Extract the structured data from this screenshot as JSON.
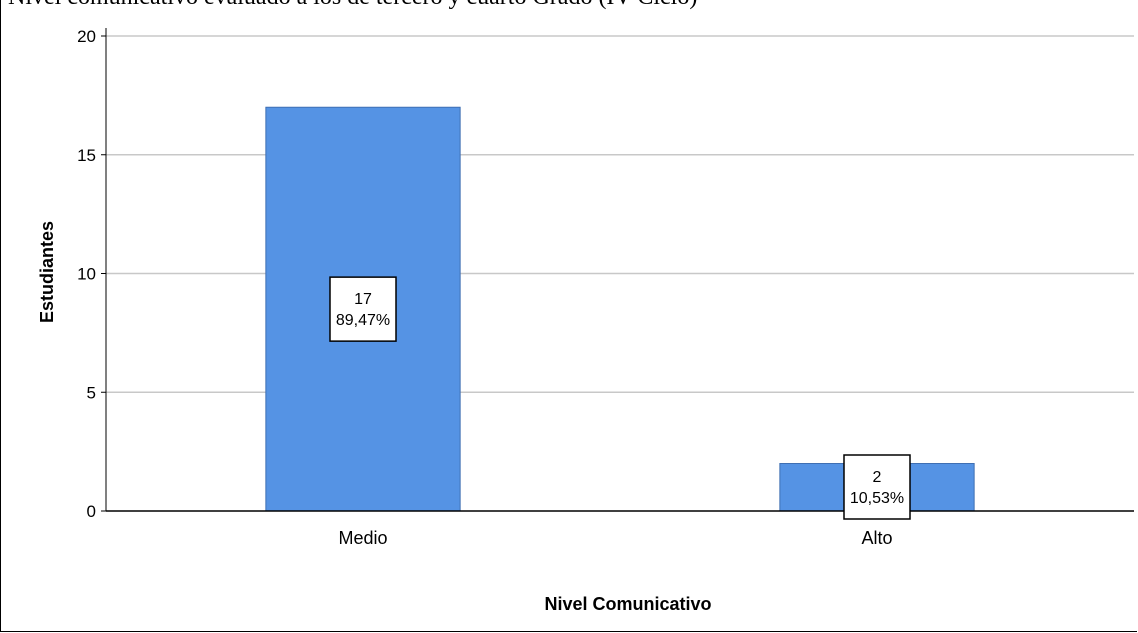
{
  "caption": "Nivel comunicativo evaluado a los de tercero y cuarto Grado (IV Ciclo)",
  "chart_data": {
    "type": "bar",
    "categories": [
      "Medio",
      "Alto"
    ],
    "values": [
      17,
      2
    ],
    "percent_labels": [
      "89,47%",
      "10,53%"
    ],
    "xlabel": "Nivel Comunicativo",
    "ylabel": "Estudiantes",
    "ylim": [
      0,
      20
    ],
    "yticks": [
      0,
      5,
      10,
      15,
      20
    ],
    "grid": true,
    "bar_color": "#5593E4",
    "bar_edge_color": "#3F6FB3"
  }
}
